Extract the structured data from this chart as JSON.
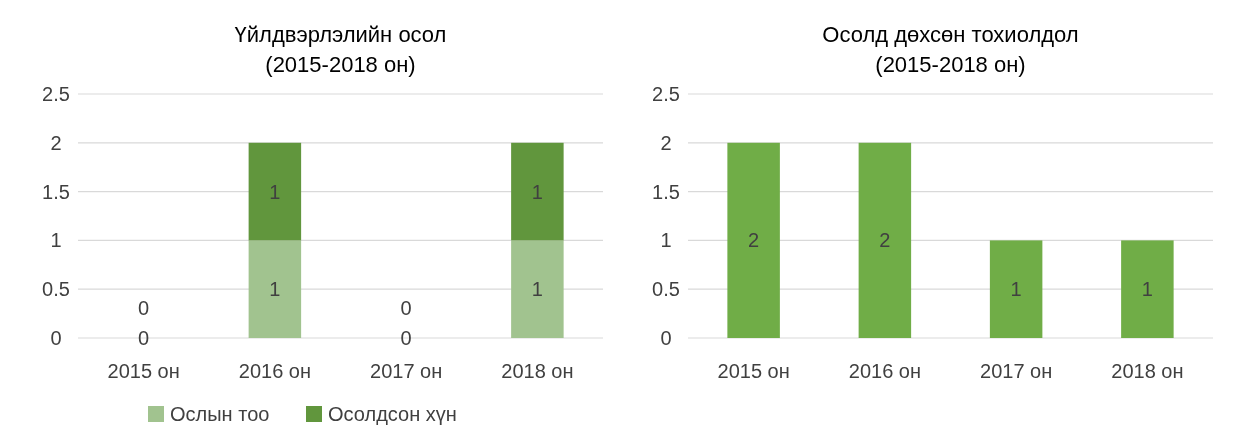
{
  "chart_data": [
    {
      "type": "bar",
      "title": "Үйлдвэрлэлийн осол\n(2015-2018 он)",
      "categories": [
        "2015 он",
        "2016 он",
        "2017 он",
        "2018 он"
      ],
      "stacked": true,
      "series": [
        {
          "name": "Ослын тоо",
          "color": "#a1c38f",
          "values": [
            0,
            1,
            0,
            1
          ]
        },
        {
          "name": "Осолдсон хүн",
          "color": "#61963d",
          "values": [
            0,
            1,
            0,
            1
          ]
        }
      ],
      "ylim": [
        0,
        2.5
      ],
      "yticks": [
        0,
        0.5,
        1,
        1.5,
        2,
        2.5
      ],
      "grid": "y",
      "data_labels": true,
      "legend": "bottom"
    },
    {
      "type": "bar",
      "title": "Осолд дөхсөн тохиолдол\n(2015-2018 он)",
      "categories": [
        "2015 он",
        "2016 он",
        "2017 он",
        "2018 он"
      ],
      "series": [
        {
          "color": "#70ad47",
          "values": [
            2,
            2,
            1,
            1
          ]
        }
      ],
      "ylim": [
        0,
        2.5
      ],
      "yticks": [
        0,
        0.5,
        1,
        1.5,
        2,
        2.5
      ],
      "grid": "y",
      "data_labels": true
    }
  ]
}
